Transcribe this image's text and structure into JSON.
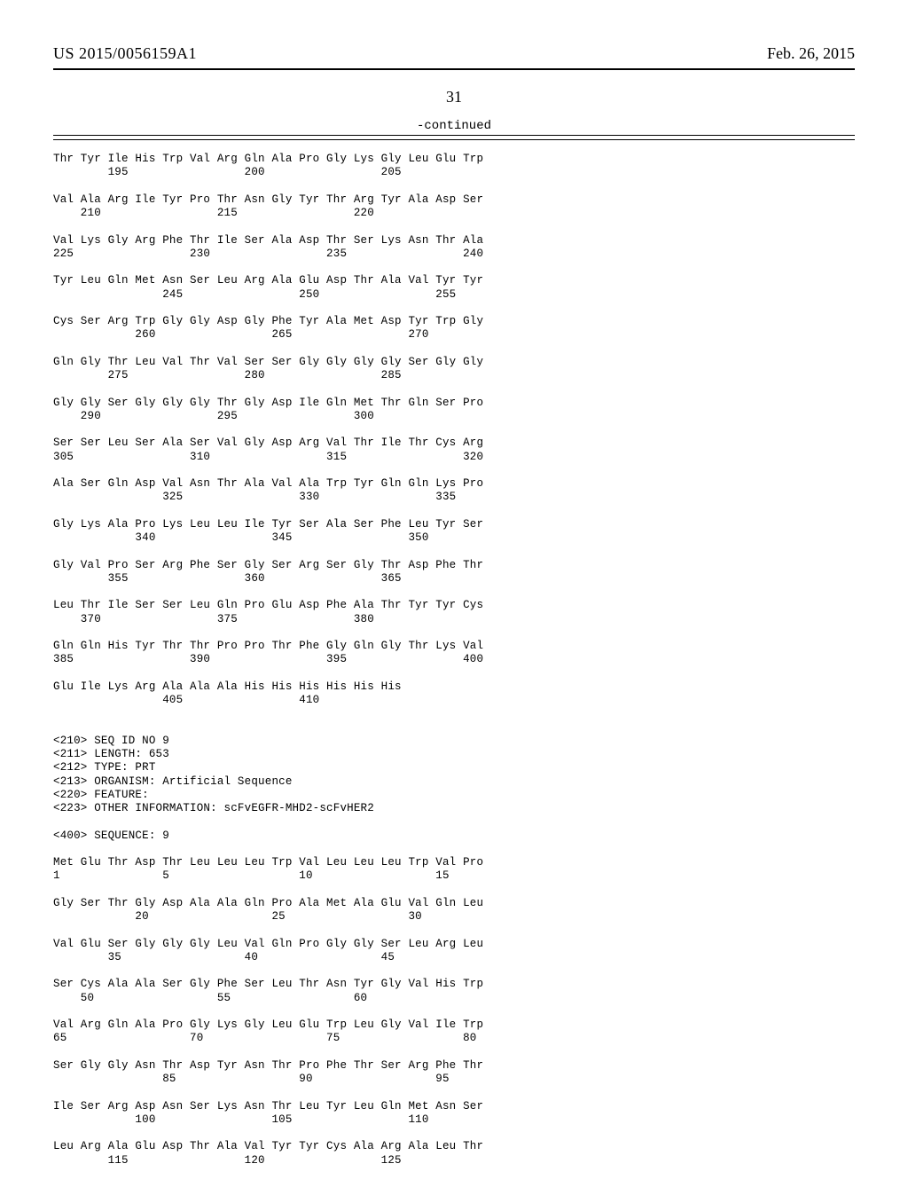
{
  "header": {
    "pubnum": "US 2015/0056159A1",
    "pubdate": "Feb. 26, 2015"
  },
  "pagenum": "31",
  "continued_label": "-continued",
  "seq_blocks": [
    "Thr Tyr Ile His Trp Val Arg Gln Ala Pro Gly Lys Gly Leu Glu Trp",
    "        195                 200                 205",
    "",
    "Val Ala Arg Ile Tyr Pro Thr Asn Gly Tyr Thr Arg Tyr Ala Asp Ser",
    "    210                 215                 220",
    "",
    "Val Lys Gly Arg Phe Thr Ile Ser Ala Asp Thr Ser Lys Asn Thr Ala",
    "225                 230                 235                 240",
    "",
    "Tyr Leu Gln Met Asn Ser Leu Arg Ala Glu Asp Thr Ala Val Tyr Tyr",
    "                245                 250                 255",
    "",
    "Cys Ser Arg Trp Gly Gly Asp Gly Phe Tyr Ala Met Asp Tyr Trp Gly",
    "            260                 265                 270",
    "",
    "Gln Gly Thr Leu Val Thr Val Ser Ser Gly Gly Gly Gly Ser Gly Gly",
    "        275                 280                 285",
    "",
    "Gly Gly Ser Gly Gly Gly Thr Gly Asp Ile Gln Met Thr Gln Ser Pro",
    "    290                 295                 300",
    "",
    "Ser Ser Leu Ser Ala Ser Val Gly Asp Arg Val Thr Ile Thr Cys Arg",
    "305                 310                 315                 320",
    "",
    "Ala Ser Gln Asp Val Asn Thr Ala Val Ala Trp Tyr Gln Gln Lys Pro",
    "                325                 330                 335",
    "",
    "Gly Lys Ala Pro Lys Leu Leu Ile Tyr Ser Ala Ser Phe Leu Tyr Ser",
    "            340                 345                 350",
    "",
    "Gly Val Pro Ser Arg Phe Ser Gly Ser Arg Ser Gly Thr Asp Phe Thr",
    "        355                 360                 365",
    "",
    "Leu Thr Ile Ser Ser Leu Gln Pro Glu Asp Phe Ala Thr Tyr Tyr Cys",
    "    370                 375                 380",
    "",
    "Gln Gln His Tyr Thr Thr Pro Pro Thr Phe Gly Gln Gly Thr Lys Val",
    "385                 390                 395                 400",
    "",
    "Glu Ile Lys Arg Ala Ala Ala His His His His His His",
    "                405                 410",
    "",
    "",
    "<210> SEQ ID NO 9",
    "<211> LENGTH: 653",
    "<212> TYPE: PRT",
    "<213> ORGANISM: Artificial Sequence",
    "<220> FEATURE:",
    "<223> OTHER INFORMATION: scFvEGFR-MHD2-scFvHER2",
    "",
    "<400> SEQUENCE: 9",
    "",
    "Met Glu Thr Asp Thr Leu Leu Leu Trp Val Leu Leu Leu Trp Val Pro",
    "1               5                   10                  15",
    "",
    "Gly Ser Thr Gly Asp Ala Ala Gln Pro Ala Met Ala Glu Val Gln Leu",
    "            20                  25                  30",
    "",
    "Val Glu Ser Gly Gly Gly Leu Val Gln Pro Gly Gly Ser Leu Arg Leu",
    "        35                  40                  45",
    "",
    "Ser Cys Ala Ala Ser Gly Phe Ser Leu Thr Asn Tyr Gly Val His Trp",
    "    50                  55                  60",
    "",
    "Val Arg Gln Ala Pro Gly Lys Gly Leu Glu Trp Leu Gly Val Ile Trp",
    "65                  70                  75                  80",
    "",
    "Ser Gly Gly Asn Thr Asp Tyr Asn Thr Pro Phe Thr Ser Arg Phe Thr",
    "                85                  90                  95",
    "",
    "Ile Ser Arg Asp Asn Ser Lys Asn Thr Leu Tyr Leu Gln Met Asn Ser",
    "            100                 105                 110",
    "",
    "Leu Arg Ala Glu Asp Thr Ala Val Tyr Tyr Cys Ala Arg Ala Leu Thr",
    "        115                 120                 125"
  ]
}
